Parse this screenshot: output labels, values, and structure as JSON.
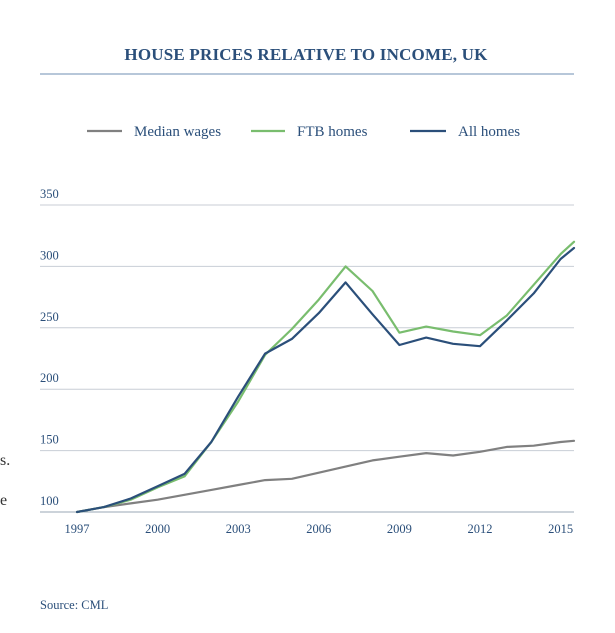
{
  "chart_data": {
    "type": "line",
    "title": "HOUSE PRICES RELATIVE TO INCOME, UK",
    "xlabel": "",
    "ylabel": "",
    "x": [
      1997,
      1998,
      1999,
      2000,
      2001,
      2002,
      2003,
      2004,
      2005,
      2006,
      2007,
      2008,
      2009,
      2010,
      2011,
      2012,
      2013,
      2014,
      2015,
      2015.5
    ],
    "x_ticks": [
      "1997",
      "2000",
      "2003",
      "2006",
      "2009",
      "2012",
      "2015"
    ],
    "y_ticks": [
      "100",
      "150",
      "200",
      "250",
      "300",
      "350"
    ],
    "ylim": [
      100,
      350
    ],
    "grid": true,
    "legend_position": "top",
    "series": [
      {
        "name": "Median wages",
        "color": "#808080",
        "values": [
          100,
          104,
          107,
          110,
          114,
          118,
          122,
          126,
          127,
          132,
          137,
          142,
          145,
          148,
          146,
          149,
          153,
          154,
          157,
          158
        ]
      },
      {
        "name": "FTB homes",
        "color": "#79bd6e",
        "values": [
          100,
          104,
          110,
          120,
          129,
          157,
          190,
          228,
          249,
          273,
          300,
          280,
          246,
          251,
          247,
          244,
          260,
          285,
          310,
          320
        ]
      },
      {
        "name": "All homes",
        "color": "#2b4f7a",
        "values": [
          100,
          104,
          111,
          121,
          131,
          157,
          194,
          229,
          241,
          262,
          287,
          261,
          236,
          242,
          237,
          235,
          256,
          278,
          306,
          315
        ]
      }
    ],
    "source": "Source: CML"
  },
  "edge_fragments": [
    "s.",
    "e"
  ]
}
